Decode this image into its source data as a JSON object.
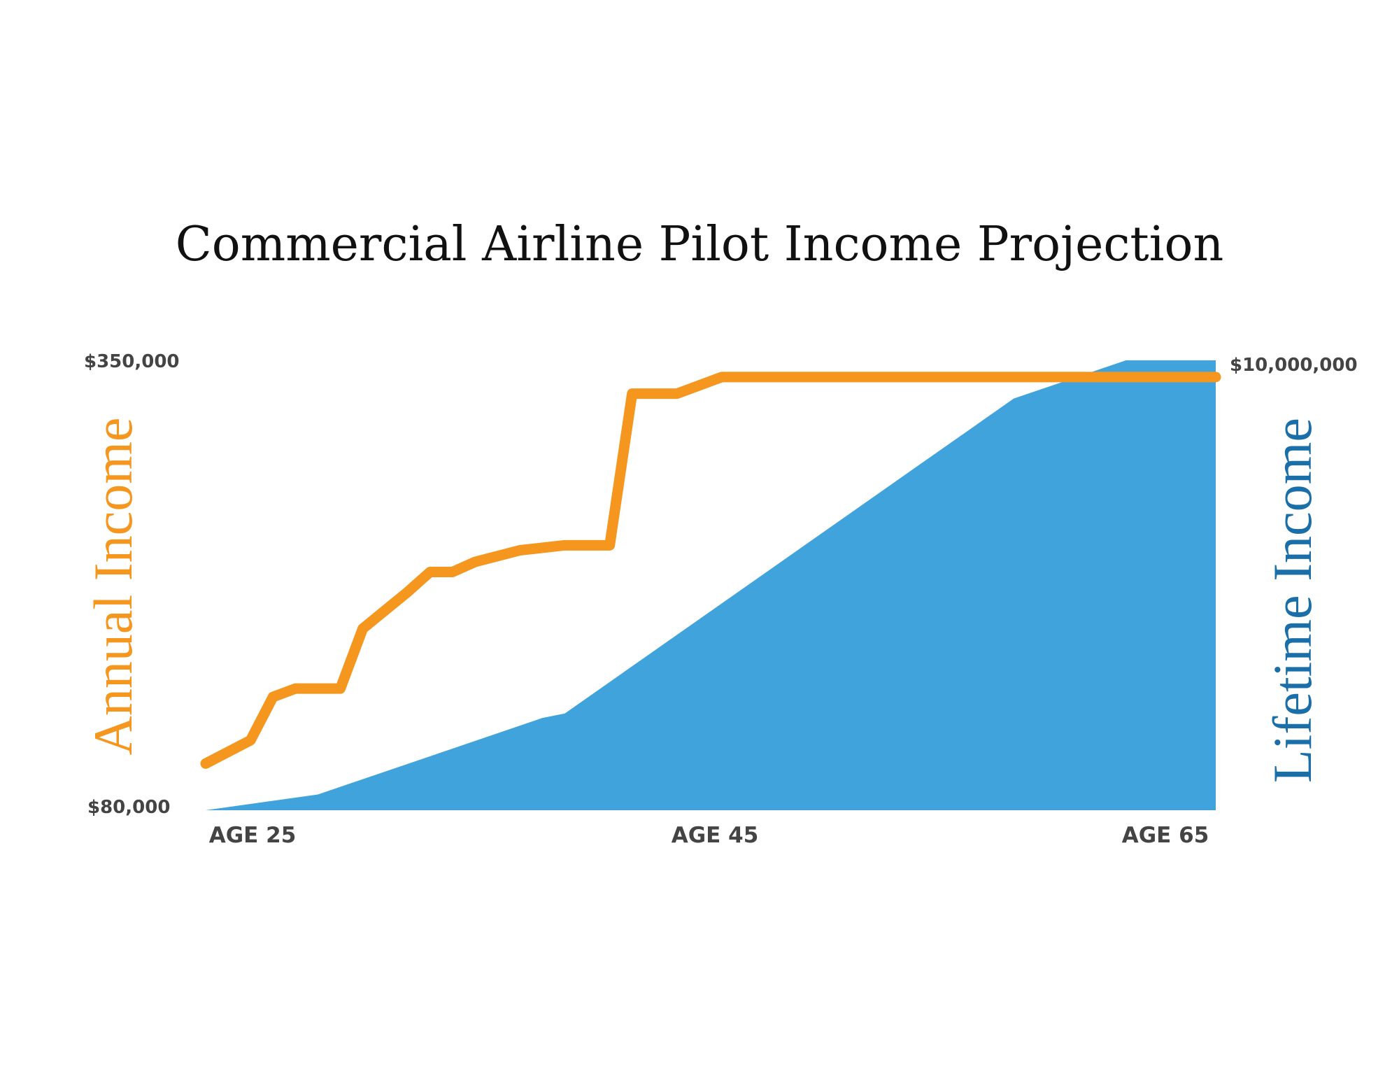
{
  "chart_data": {
    "type": "line",
    "title": "Commercial Airline Pilot Income Projection",
    "x": [
      22,
      24,
      25,
      26,
      27,
      28,
      29,
      31,
      32,
      33,
      34,
      36,
      38,
      40,
      41,
      42,
      43,
      45,
      48,
      50,
      55,
      60,
      65,
      67
    ],
    "x_tick_labels": [
      "AGE 25",
      "AGE 45",
      "AGE 65"
    ],
    "x_tick_values": [
      25,
      45,
      65
    ],
    "xlim": [
      22,
      67
    ],
    "series": [
      {
        "name": "Annual Income",
        "axis": "left",
        "color": "#F5961E",
        "values": [
          108000,
          122000,
          148000,
          153000,
          153000,
          153000,
          189000,
          211000,
          223000,
          223000,
          229000,
          236000,
          239000,
          239000,
          330000,
          330000,
          330000,
          340000,
          340000,
          340000,
          340000,
          340000,
          340000,
          340000
        ]
      },
      {
        "name": "Lifetime Income",
        "axis": "right",
        "type": "area",
        "color": "#41A3DB",
        "x": [
          22,
          27,
          32,
          37,
          38,
          43,
          48,
          53,
          58,
          63,
          67
        ],
        "values": [
          0,
          350000,
          1200000,
          2050000,
          2150000,
          3900000,
          5650000,
          7400000,
          9150000,
          10000000,
          10000000
        ]
      }
    ],
    "y_left": {
      "label": "Annual Income",
      "color": "#F5961E",
      "ylim": [
        80000,
        350000
      ],
      "tick_labels": [
        "$350,000",
        "$80,000"
      ]
    },
    "y_right": {
      "label": "Lifetime Income",
      "color": "#1A6FA8",
      "ylim": [
        0,
        10000000
      ],
      "tick_labels": [
        "$10,000,000"
      ]
    },
    "grid": false,
    "legend": "none"
  }
}
